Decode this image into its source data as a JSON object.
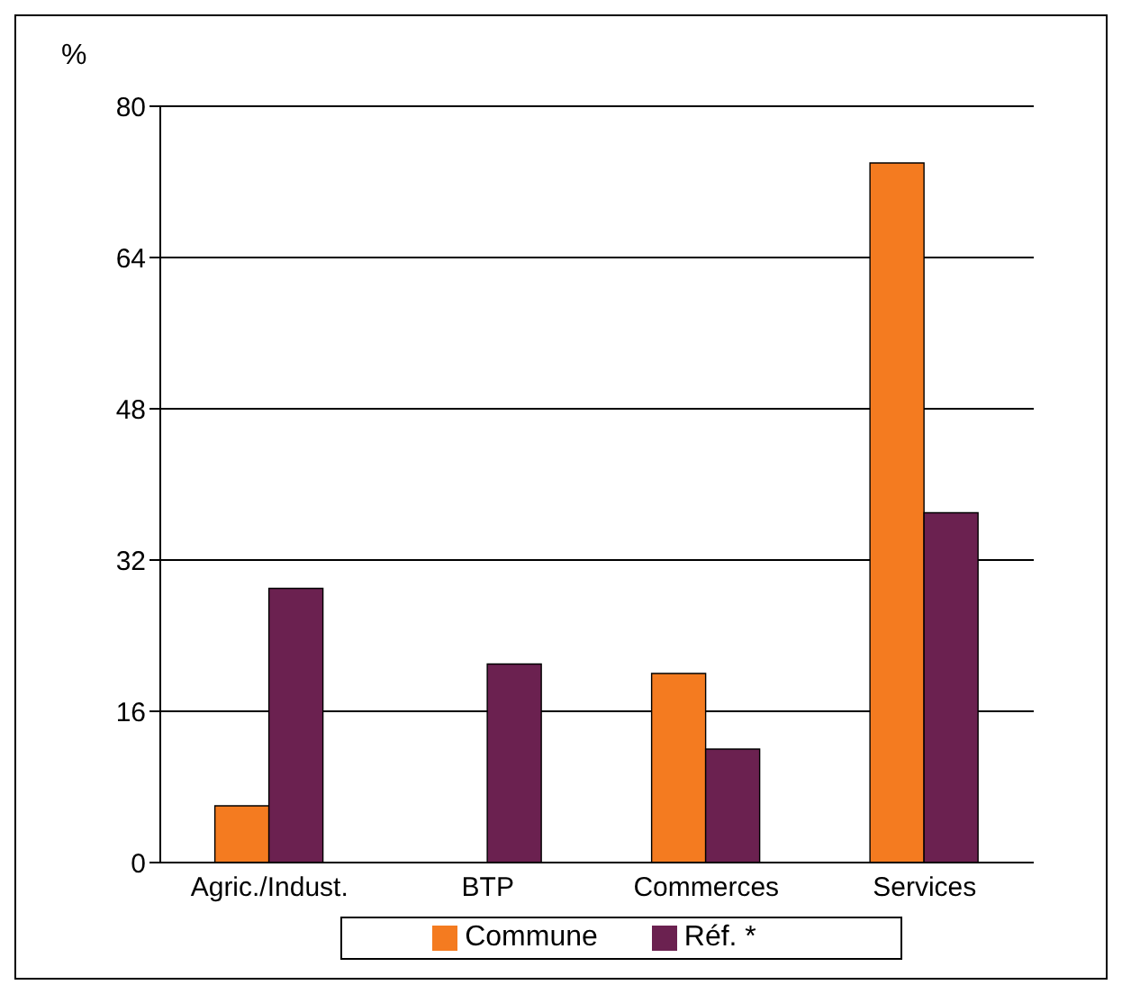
{
  "chart_data": {
    "type": "bar",
    "ylabel": "%",
    "categories": [
      "Agric./Indust.",
      "BTP",
      "Commerces",
      "Services"
    ],
    "series": [
      {
        "name": "Commune",
        "color": "#f47b20",
        "values": [
          6,
          0,
          20,
          74
        ]
      },
      {
        "name": "Réf. *",
        "color": "#6b2150",
        "values": [
          29,
          21,
          12,
          37
        ]
      }
    ],
    "ylim": [
      0,
      80
    ],
    "yticks": [
      0,
      16,
      32,
      48,
      64,
      80
    ],
    "grid": "y",
    "legend": "bottom"
  }
}
